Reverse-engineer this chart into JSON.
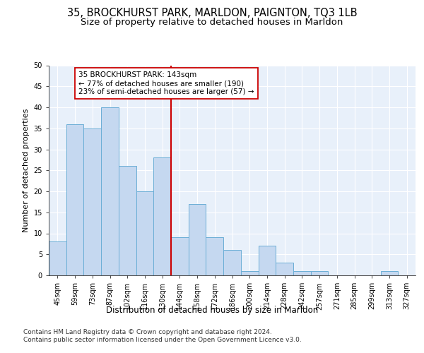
{
  "title1": "35, BROCKHURST PARK, MARLDON, PAIGNTON, TQ3 1LB",
  "title2": "Size of property relative to detached houses in Marldon",
  "xlabel": "Distribution of detached houses by size in Marldon",
  "ylabel": "Number of detached properties",
  "categories": [
    "45sqm",
    "59sqm",
    "73sqm",
    "87sqm",
    "102sqm",
    "116sqm",
    "130sqm",
    "144sqm",
    "158sqm",
    "172sqm",
    "186sqm",
    "200sqm",
    "214sqm",
    "228sqm",
    "242sqm",
    "257sqm",
    "271sqm",
    "285sqm",
    "299sqm",
    "313sqm",
    "327sqm"
  ],
  "values": [
    8,
    36,
    35,
    40,
    26,
    20,
    28,
    9,
    17,
    9,
    6,
    1,
    7,
    3,
    1,
    1,
    0,
    0,
    0,
    1,
    0
  ],
  "bar_color": "#c5d8f0",
  "bar_edge_color": "#6baed6",
  "vline_color": "#cc0000",
  "annotation_text": "35 BROCKHURST PARK: 143sqm\n← 77% of detached houses are smaller (190)\n23% of semi-detached houses are larger (57) →",
  "annotation_box_color": "#ffffff",
  "annotation_box_edge": "#cc0000",
  "ylim": [
    0,
    50
  ],
  "yticks": [
    0,
    5,
    10,
    15,
    20,
    25,
    30,
    35,
    40,
    45,
    50
  ],
  "background_color": "#e8f0fa",
  "grid_color": "#ffffff",
  "footer1": "Contains HM Land Registry data © Crown copyright and database right 2024.",
  "footer2": "Contains public sector information licensed under the Open Government Licence v3.0.",
  "title1_fontsize": 10.5,
  "title2_fontsize": 9.5,
  "xlabel_fontsize": 8.5,
  "ylabel_fontsize": 8,
  "tick_fontsize": 7,
  "annot_fontsize": 7.5,
  "footer_fontsize": 6.5
}
